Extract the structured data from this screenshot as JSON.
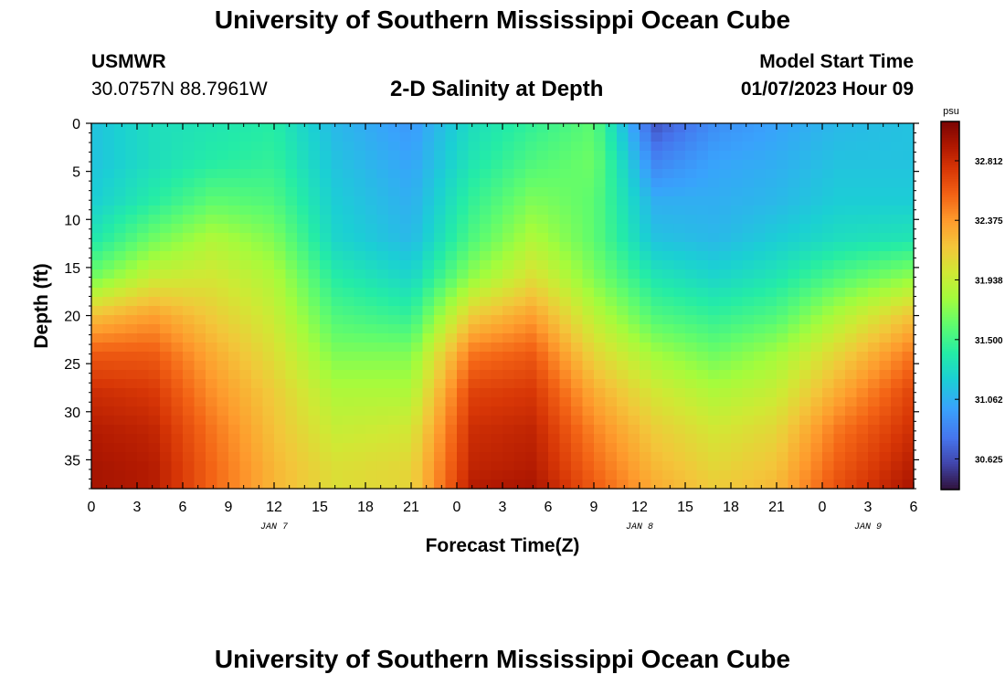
{
  "page": {
    "title_top": "University of Southern Mississippi Ocean Cube",
    "title_bottom": "University of Southern Mississippi Ocean Cube",
    "station_id": "USMWR",
    "station_coords": "30.0757N  88.7961W",
    "model_start_label": "Model Start Time",
    "model_start_value": "01/07/2023 Hour 09"
  },
  "chart_data": {
    "type": "heatmap",
    "title": "2-D Salinity at Depth",
    "xlabel": "Forecast Time(Z)",
    "ylabel": "Depth (ft)",
    "x_tick_labels": [
      "0",
      "3",
      "6",
      "9",
      "12",
      "15",
      "18",
      "21",
      "0",
      "3",
      "6",
      "9",
      "12",
      "15",
      "18",
      "21",
      "0",
      "3",
      "6"
    ],
    "x_range_hours": [
      0,
      54
    ],
    "y_ticks": [
      0,
      5,
      10,
      15,
      20,
      25,
      30,
      35
    ],
    "ylim": [
      0,
      38
    ],
    "y_inverted": true,
    "day_labels": [
      {
        "label": "JAN 7",
        "at_hour": 12
      },
      {
        "label": "JAN 8",
        "at_hour": 36
      },
      {
        "label": "JAN 9",
        "at_hour": 51
      }
    ],
    "colorbar": {
      "unit": "psu",
      "min": 30.4,
      "max": 33.1,
      "ticks": [
        32.812,
        32.375,
        31.938,
        31.5,
        31.062,
        30.625
      ],
      "tick_labels": [
        "32.812",
        "32.375",
        "31.938",
        "31.500",
        "31.062",
        "30.625"
      ]
    },
    "time_hours": [
      0,
      4,
      8,
      12,
      16,
      21,
      25,
      29,
      33,
      37,
      41,
      45,
      49,
      54
    ],
    "depth_ft": [
      0,
      4,
      8,
      12,
      16,
      20,
      24,
      28,
      32,
      36,
      38
    ],
    "salinity_psu": [
      [
        31.15,
        31.3,
        31.35,
        31.4,
        31.1,
        30.95,
        31.3,
        31.45,
        31.6,
        30.65,
        30.9,
        31.0,
        31.1,
        31.15
      ],
      [
        31.15,
        31.3,
        31.4,
        31.45,
        31.15,
        31.0,
        31.35,
        31.55,
        31.65,
        30.85,
        31.0,
        31.05,
        31.15,
        31.15
      ],
      [
        31.2,
        31.4,
        31.6,
        31.55,
        31.2,
        31.05,
        31.45,
        31.7,
        31.6,
        31.05,
        31.05,
        31.1,
        31.2,
        31.2
      ],
      [
        31.35,
        31.65,
        31.85,
        31.7,
        31.25,
        31.1,
        31.55,
        31.85,
        31.6,
        31.15,
        31.1,
        31.2,
        31.3,
        31.35
      ],
      [
        31.65,
        31.95,
        32.0,
        31.85,
        31.4,
        31.25,
        31.75,
        32.05,
        31.7,
        31.35,
        31.25,
        31.35,
        31.55,
        31.75
      ],
      [
        32.2,
        32.35,
        32.15,
        31.95,
        31.55,
        31.45,
        32.15,
        32.35,
        31.9,
        31.55,
        31.45,
        31.55,
        31.85,
        32.2
      ],
      [
        32.6,
        32.6,
        32.3,
        32.05,
        31.7,
        31.7,
        32.5,
        32.6,
        32.1,
        31.8,
        31.65,
        31.8,
        32.1,
        32.5
      ],
      [
        32.8,
        32.75,
        32.4,
        32.15,
        31.85,
        31.85,
        32.7,
        32.75,
        32.3,
        32.0,
        31.85,
        31.95,
        32.3,
        32.7
      ],
      [
        32.9,
        32.85,
        32.5,
        32.2,
        31.95,
        32.0,
        32.8,
        32.85,
        32.45,
        32.15,
        32.0,
        32.1,
        32.5,
        32.8
      ],
      [
        32.95,
        32.9,
        32.55,
        32.25,
        32.05,
        32.1,
        32.85,
        32.9,
        32.55,
        32.25,
        32.1,
        32.2,
        32.6,
        32.9
      ],
      [
        32.95,
        32.9,
        32.55,
        32.25,
        32.05,
        32.1,
        32.9,
        32.95,
        32.6,
        32.3,
        32.15,
        32.25,
        32.65,
        32.95
      ]
    ]
  }
}
